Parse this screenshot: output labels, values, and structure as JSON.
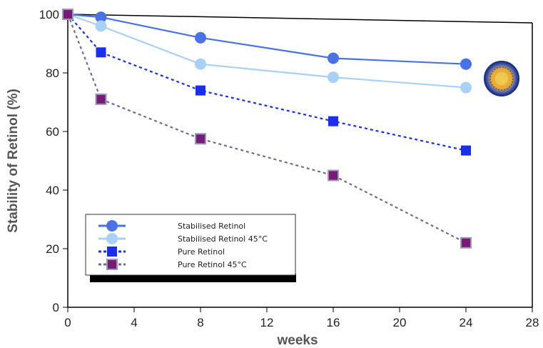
{
  "chart_data": {
    "type": "line",
    "xlabel": "weeks",
    "ylabel": "Stability of Retinol (%)",
    "xlim": [
      0,
      28
    ],
    "ylim": [
      0,
      100
    ],
    "xticks": [
      0,
      4,
      8,
      12,
      16,
      20,
      24,
      28
    ],
    "yticks": [
      0,
      20,
      40,
      60,
      80,
      100
    ],
    "x": [
      0,
      2,
      8,
      16,
      24
    ],
    "legend_position": "lower-left",
    "grid": false,
    "series": [
      {
        "name": "Stabilised Retinol",
        "values": [
          100,
          99,
          92,
          85,
          83
        ],
        "color": "#4a72e8",
        "marker": "circle",
        "dashed": false
      },
      {
        "name": "Stabilised Retinol 45°C",
        "values": [
          100,
          96,
          83,
          78.5,
          75
        ],
        "color": "#a9d0f7",
        "marker": "circle",
        "dashed": false
      },
      {
        "name": "Pure Retinol",
        "values": [
          100,
          87,
          74,
          63.5,
          53.5
        ],
        "color": "#1a2ef0",
        "marker": "square",
        "dashed": true
      },
      {
        "name": "Pure Retinol 45°C",
        "values": [
          100,
          71,
          57.5,
          45,
          22
        ],
        "color": "#7a1a78",
        "line_color": "#6d6d9a",
        "marker": "square",
        "dashed": true
      }
    ],
    "icon": "liposome-sphere-icon"
  }
}
